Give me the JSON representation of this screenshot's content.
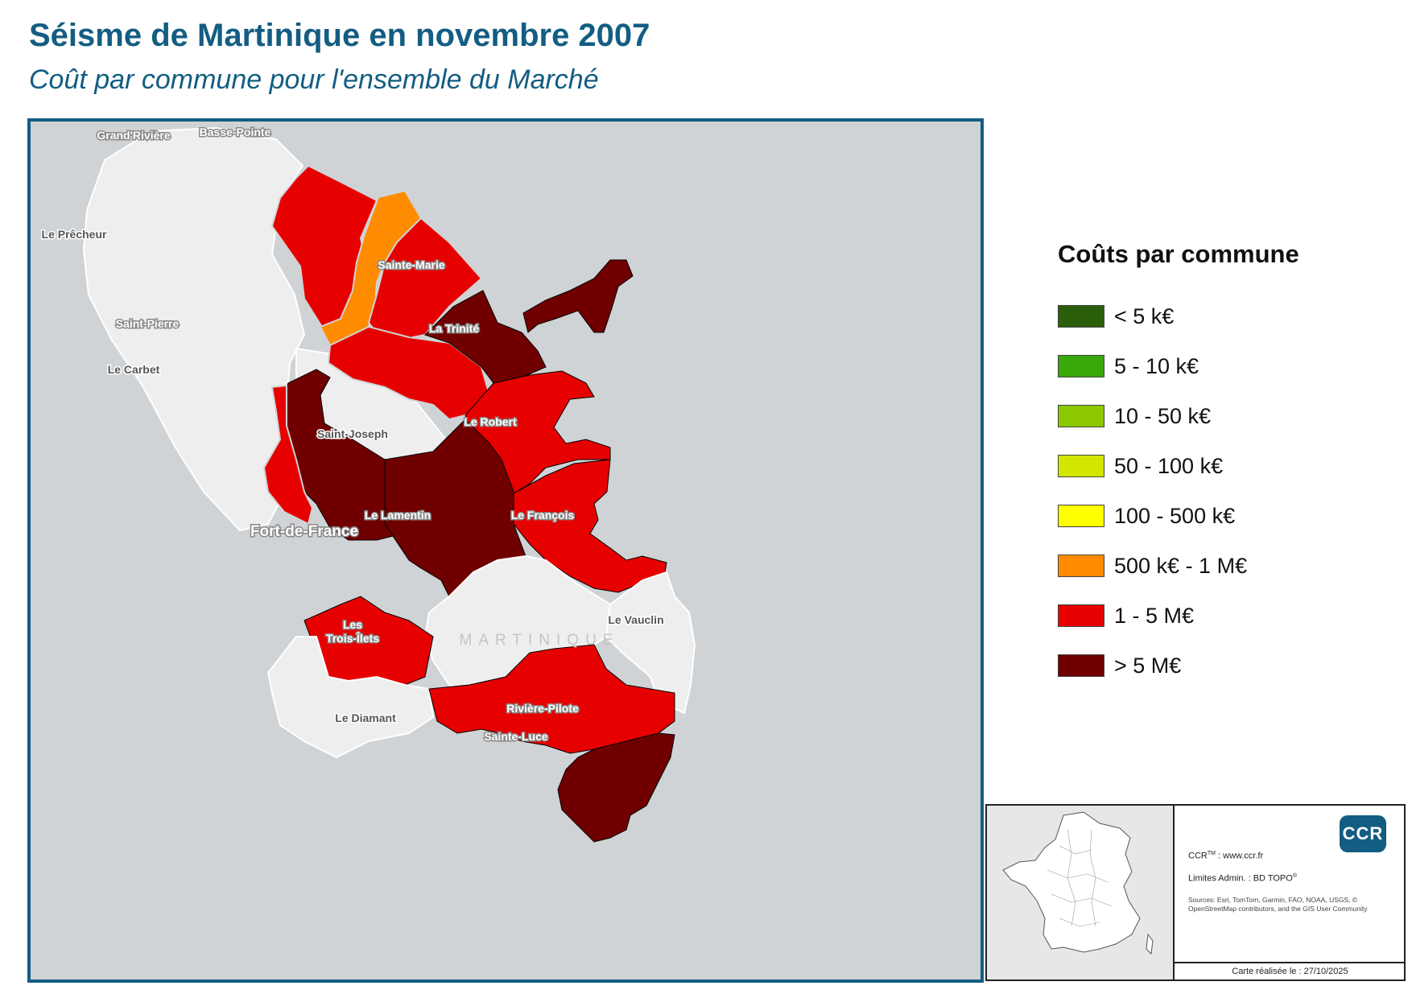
{
  "title": "Séisme de Martinique en novembre 2007",
  "subtitle": "Coût par commune pour l'ensemble du Marché",
  "map": {
    "island_label": "MARTINIQUE",
    "communes": {
      "grand_riviere": {
        "name": "Grand'Rivière",
        "class": "no-data"
      },
      "basse_pointe": {
        "name": "Basse-Pointe",
        "class": "no-data"
      },
      "le_precheur": {
        "name": "Le Prêcheur",
        "class": "no-data"
      },
      "saint_pierre": {
        "name": "Saint-Pierre",
        "class": "no-data"
      },
      "le_carbet": {
        "name": "Le Carbet",
        "class": "no-data"
      },
      "sainte_marie": {
        "name": "Sainte-Marie",
        "class": "1 - 5 M€"
      },
      "la_trinite": {
        "name": "La Trinité",
        "class": "> 5 M€"
      },
      "saint_joseph": {
        "name": "Saint-Joseph",
        "class": "no-data"
      },
      "le_robert": {
        "name": "Le Robert",
        "class": "1 - 5 M€"
      },
      "fort_de_france": {
        "name": "Fort-de-France",
        "class": "> 5 M€"
      },
      "le_lamentin": {
        "name": "Le Lamentin",
        "class": "> 5 M€"
      },
      "le_francois": {
        "name": "Le François",
        "class": "1 - 5 M€"
      },
      "le_vauclin": {
        "name": "Le Vauclin",
        "class": "no-data"
      },
      "les_trois_ilets_line1": {
        "name": "Les",
        "class": "1 - 5 M€"
      },
      "les_trois_ilets_line2": {
        "name": "Trois-Îlets",
        "class": "1 - 5 M€"
      },
      "le_diamant": {
        "name": "Le Diamant",
        "class": "no-data"
      },
      "riviere_pilote": {
        "name": "Rivière-Pilote",
        "class": "1 - 5 M€"
      },
      "sainte_luce": {
        "name": "Sainte-Luce",
        "class": "1 - 5 M€"
      }
    },
    "colors": {
      "sea": "#d0d3d5",
      "no_data": "#eeeeee",
      "boundary": "#ffffff"
    }
  },
  "legend": {
    "title": "Coûts par commune",
    "items": [
      {
        "label": "< 5 k€",
        "color": "#2a5e0a"
      },
      {
        "label": "5 - 10 k€",
        "color": "#38a80a"
      },
      {
        "label": "10 - 50 k€",
        "color": "#8cc800"
      },
      {
        "label": "50 - 100 k€",
        "color": "#d2e600"
      },
      {
        "label": "100 - 500 k€",
        "color": "#ffff00"
      },
      {
        "label": "500 k€ - 1 M€",
        "color": "#ff8c00"
      },
      {
        "label": "1 - 5 M€",
        "color": "#e60000"
      },
      {
        "label": "> 5 M€",
        "color": "#700000"
      }
    ]
  },
  "info": {
    "logo": "CCR",
    "ccr_line_prefix": "CCR",
    "ccr_line_sup": "TM",
    "ccr_line_suffix": " : www.ccr.fr",
    "limits_line": "Limites Admin. : BD TOPO",
    "limits_sup": "®",
    "sources": "Sources: Esri, TomTom, Garmin, FAO, NOAA, USGS, © OpenStreetMap contributors, and the GIS User Community",
    "date_line": "Carte réalisée le : 27/10/2025"
  }
}
